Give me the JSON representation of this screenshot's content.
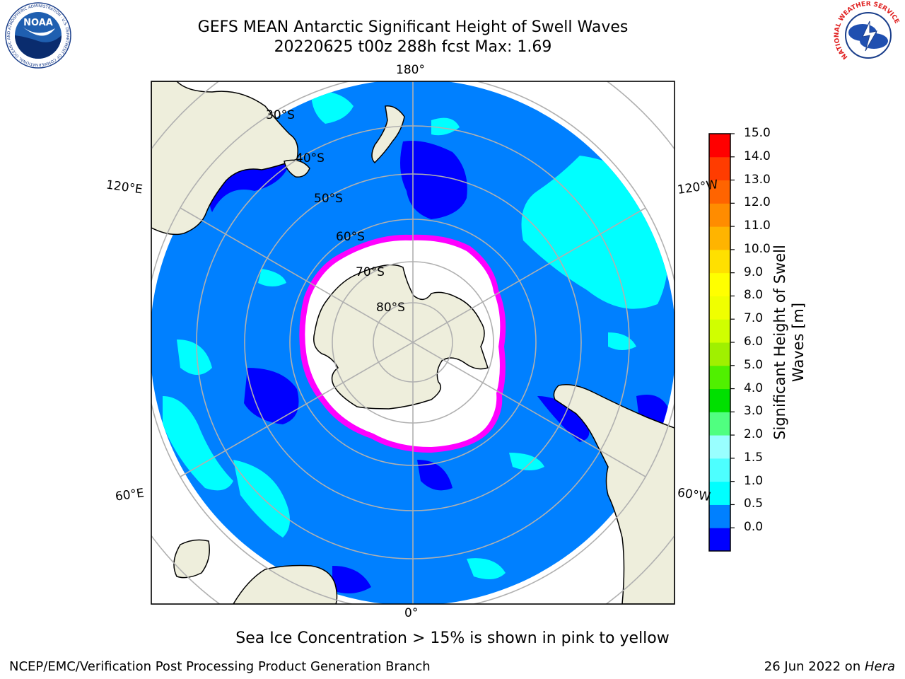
{
  "header": {
    "title_line1": "GEFS MEAN Antarctic Significant Height of Swell Waves",
    "title_line2": "20220625 t00z 288h fcst   Max: 1.69"
  },
  "logos": {
    "left": "noaa-logo",
    "left_text": "NOAA",
    "left_ring_text": "NATIONAL OCEANIC AND ATMOSPHERIC ADMINISTRATION · U.S. DEPARTMENT OF COMMERCE",
    "right": "nws-logo",
    "right_ring_text": "NATIONAL WEATHER SERVICE"
  },
  "map": {
    "longitude_labels": [
      "180°",
      "120°E",
      "120°W",
      "60°E",
      "60°W",
      "0°"
    ],
    "latitude_labels": [
      "30°S",
      "40°S",
      "50°S",
      "60°S",
      "70°S",
      "80°S"
    ],
    "colors": {
      "land": "#eeeedc",
      "ocean_0_0_5": "#0000ff",
      "ocean_0_5_1_0": "#0080ff",
      "ocean_1_0_1_5": "#00ffff",
      "ice": "#ffffff",
      "ice_edge": "#ff00ff",
      "gridline": "#b0b0b0"
    }
  },
  "colorbar": {
    "title": "Significant Height of Swell Waves [m]",
    "ticks": [
      "15.0",
      "14.0",
      "13.0",
      "12.0",
      "11.0",
      "10.0",
      "9.0",
      "8.0",
      "7.0",
      "6.0",
      "5.0",
      "4.0",
      "3.0",
      "2.0",
      "1.5",
      "1.0",
      "0.5",
      "0.0"
    ],
    "colors": [
      "#0000ff",
      "#0080ff",
      "#00ffff",
      "#4dffff",
      "#99ffff",
      "#50ff80",
      "#00e000",
      "#50f000",
      "#a0f000",
      "#d0ff00",
      "#f0ff00",
      "#ffff00",
      "#ffe000",
      "#ffb400",
      "#ff8c00",
      "#ff6400",
      "#ff3c00",
      "#ff0000"
    ]
  },
  "note": "Sea Ice Concentration > 15% is shown in pink to yellow",
  "footer": {
    "left": "NCEP/EMC/Verification Post Processing Product Generation Branch",
    "date": "26 Jun 2022 on ",
    "machine": "Hera"
  }
}
